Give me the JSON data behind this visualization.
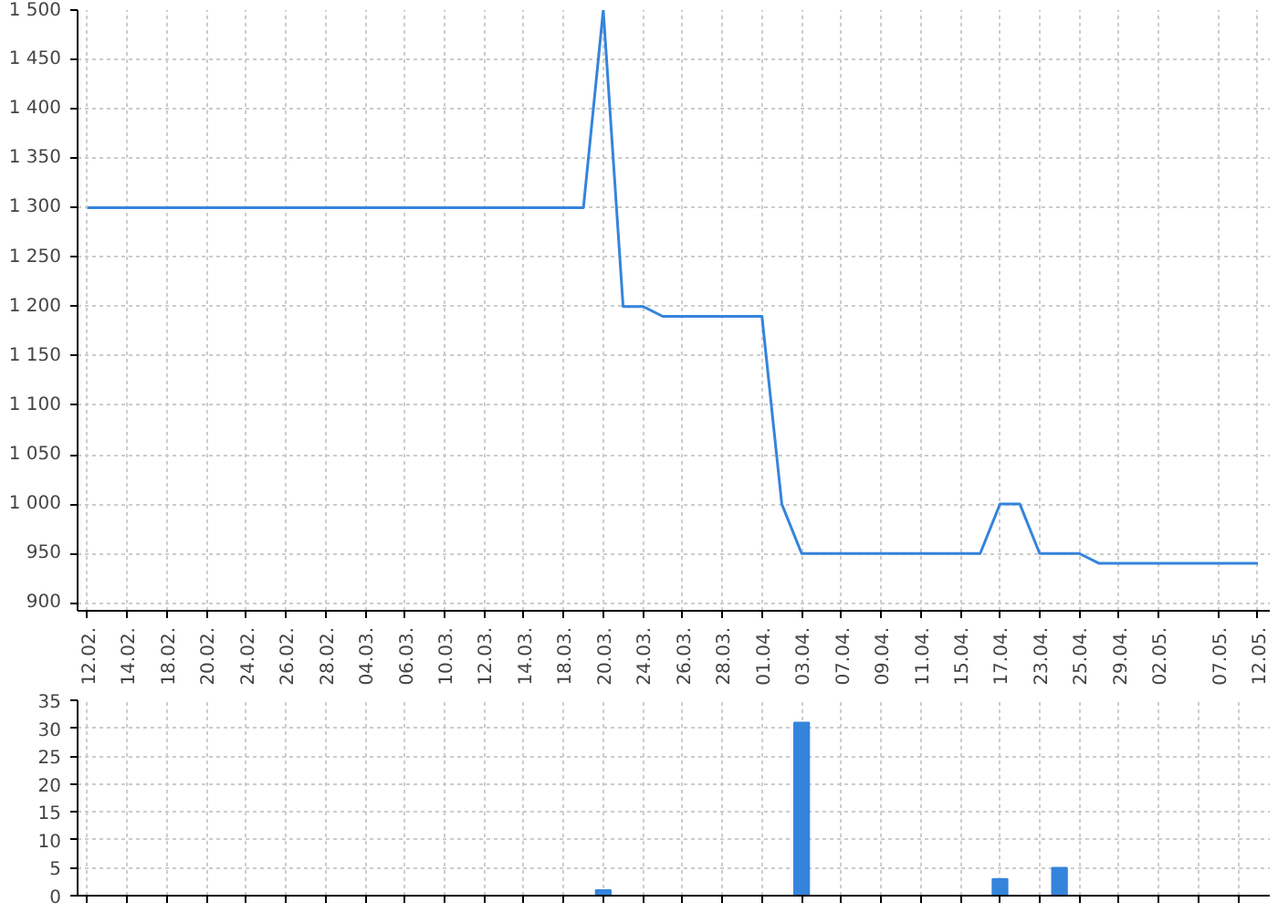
{
  "chart_data": [
    {
      "type": "line",
      "color": "#3584dc",
      "grid": true,
      "categories": [
        "12.02.",
        null,
        "14.02.",
        null,
        "18.02.",
        null,
        "20.02.",
        null,
        "24.02.",
        null,
        "26.02.",
        null,
        "28.02.",
        null,
        "04.03.",
        null,
        "06.03.",
        null,
        "10.03.",
        null,
        "12.03.",
        null,
        "14.03.",
        null,
        "18.03.",
        null,
        "20.03.",
        null,
        "24.03.",
        null,
        "26.03.",
        null,
        "28.03.",
        null,
        "01.04.",
        null,
        "03.04.",
        null,
        "07.04.",
        null,
        "09.04.",
        null,
        "11.04.",
        null,
        "15.04.",
        null,
        "17.04.",
        null,
        "23.04.",
        null,
        "25.04.",
        null,
        "29.04.",
        null,
        "02.05.",
        null,
        null,
        "07.05.",
        null,
        "12.05."
      ],
      "values": [
        1300,
        1300,
        1300,
        1300,
        1300,
        1300,
        1300,
        1300,
        1300,
        1300,
        1300,
        1300,
        1300,
        1300,
        1300,
        1300,
        1300,
        1300,
        1300,
        1300,
        1300,
        1300,
        1300,
        1300,
        1300,
        1300,
        1500,
        1200,
        1200,
        1190,
        1190,
        1190,
        1190,
        1190,
        1190,
        1000,
        950,
        950,
        950,
        950,
        950,
        950,
        950,
        950,
        950,
        950,
        1000,
        1000,
        950,
        950,
        950,
        940,
        940,
        940,
        940,
        940,
        940,
        940,
        940,
        940
      ],
      "ylim": [
        892,
        1500
      ],
      "yticks": [
        {
          "value": 900,
          "label": "900"
        },
        {
          "value": 950,
          "label": "950"
        },
        {
          "value": 1000,
          "label": "1 000"
        },
        {
          "value": 1050,
          "label": "1 050"
        },
        {
          "value": 1100,
          "label": "1 100"
        },
        {
          "value": 1150,
          "label": "1 150"
        },
        {
          "value": 1200,
          "label": "1 200"
        },
        {
          "value": 1250,
          "label": "1 250"
        },
        {
          "value": 1300,
          "label": "1 300"
        },
        {
          "value": 1350,
          "label": "1 350"
        },
        {
          "value": 1400,
          "label": "1 400"
        },
        {
          "value": 1450,
          "label": "1 450"
        },
        {
          "value": 1500,
          "label": "1 500"
        }
      ]
    },
    {
      "type": "bar",
      "color": "#3584dc",
      "grid": true,
      "tick_labels": "y",
      "categories": [
        null,
        null,
        null,
        null,
        null,
        null,
        null,
        null,
        null,
        null,
        null,
        null,
        null,
        null,
        null,
        null,
        null,
        null,
        null,
        null,
        null,
        null,
        null,
        null,
        null,
        null,
        null,
        null,
        null,
        null,
        null,
        null,
        null,
        null,
        null,
        null,
        null,
        null,
        null,
        null,
        null,
        null,
        null,
        null,
        null,
        null,
        null,
        null,
        null,
        null,
        null,
        null,
        null,
        null,
        null,
        null,
        null,
        null,
        null,
        null
      ],
      "values": [
        null,
        null,
        null,
        null,
        null,
        null,
        null,
        null,
        null,
        null,
        null,
        null,
        null,
        null,
        null,
        null,
        null,
        null,
        null,
        null,
        null,
        null,
        null,
        null,
        null,
        null,
        1,
        null,
        null,
        null,
        null,
        null,
        null,
        null,
        null,
        null,
        31,
        null,
        null,
        null,
        null,
        null,
        null,
        null,
        null,
        null,
        3,
        null,
        null,
        5,
        null,
        null,
        null,
        null,
        null,
        null,
        null,
        null,
        null,
        null
      ],
      "ylim": [
        0,
        35
      ],
      "yticks": [
        0,
        5,
        10,
        15,
        20,
        25,
        30,
        35
      ]
    }
  ]
}
